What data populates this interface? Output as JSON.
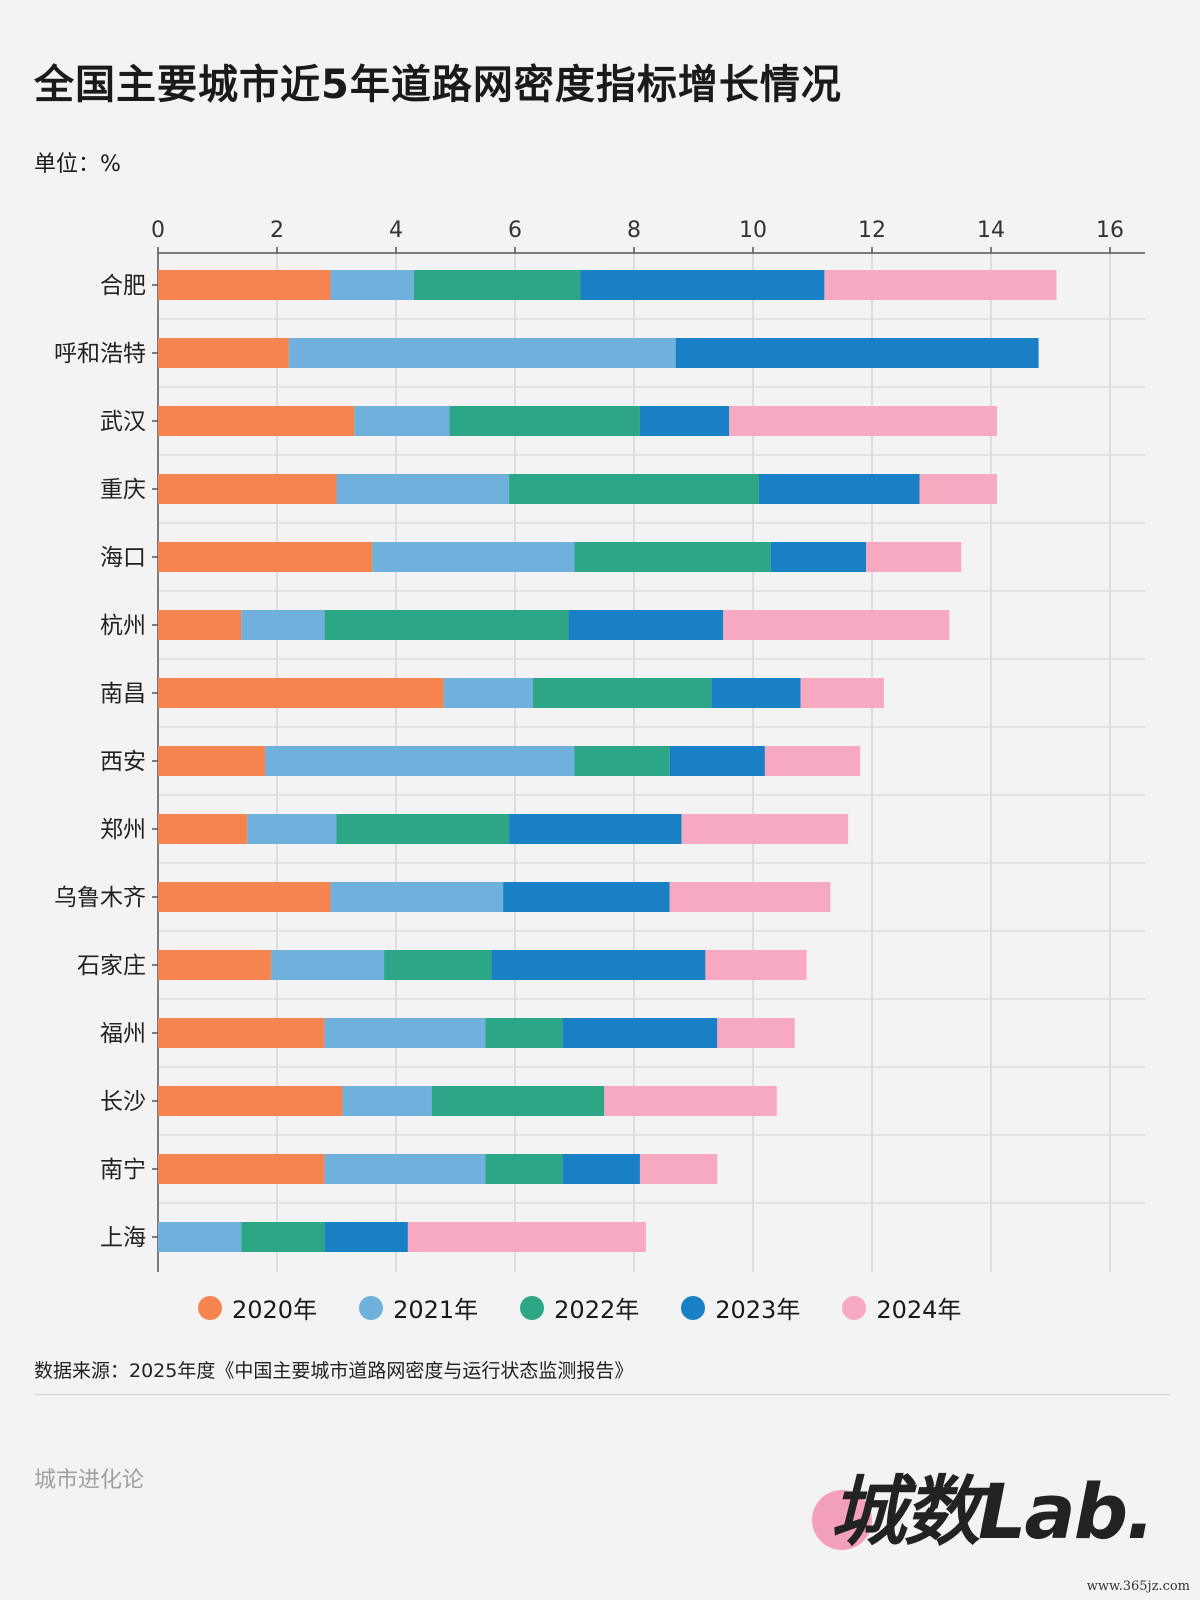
{
  "header": {
    "title": "全国主要城市近5年道路网密度指标增长情况",
    "unit": "单位：%"
  },
  "chart_data": {
    "type": "bar",
    "orientation": "horizontal",
    "stacked": true,
    "title": "全国主要城市近5年道路网密度指标增长情况",
    "xlabel": "",
    "ylabel": "",
    "xlim": [
      0,
      16.5
    ],
    "xticks": [
      0,
      2,
      4,
      6,
      8,
      10,
      12,
      14,
      16
    ],
    "grid": true,
    "legend_position": "bottom",
    "categories": [
      "合肥",
      "呼和浩特",
      "武汉",
      "重庆",
      "海口",
      "杭州",
      "南昌",
      "西安",
      "郑州",
      "乌鲁木齐",
      "石家庄",
      "福州",
      "长沙",
      "南宁",
      "上海"
    ],
    "series": [
      {
        "name": "2020年",
        "color": "#f5844e",
        "values": [
          2.9,
          2.2,
          3.3,
          3.0,
          3.6,
          1.4,
          4.8,
          1.8,
          1.5,
          2.9,
          1.9,
          2.8,
          3.1,
          2.8,
          0
        ]
      },
      {
        "name": "2021年",
        "color": "#6fb0dc",
        "values": [
          1.4,
          6.5,
          1.6,
          2.9,
          3.4,
          1.4,
          1.5,
          5.2,
          1.5,
          2.9,
          1.9,
          2.7,
          1.5,
          2.7,
          1.4
        ]
      },
      {
        "name": "2022年",
        "color": "#2da685",
        "values": [
          2.8,
          0,
          3.2,
          4.2,
          3.3,
          4.1,
          3.0,
          1.6,
          2.9,
          0,
          1.8,
          1.3,
          2.9,
          1.3,
          1.4
        ]
      },
      {
        "name": "2023年",
        "color": "#1a80c6",
        "values": [
          4.1,
          6.1,
          1.5,
          2.7,
          1.6,
          2.6,
          1.5,
          1.6,
          2.9,
          2.8,
          3.6,
          2.6,
          0,
          1.3,
          1.4
        ]
      },
      {
        "name": "2024年",
        "color": "#f7a9c1",
        "values": [
          3.9,
          0,
          4.5,
          1.3,
          1.6,
          3.8,
          1.4,
          1.6,
          2.8,
          2.7,
          1.7,
          1.3,
          2.9,
          1.3,
          4.0
        ]
      }
    ]
  },
  "footer": {
    "source": "数据来源：2025年度《中国主要城市道路网密度与运行状态监测报告》",
    "brand": "城市进化论",
    "logo": "城数Lab.",
    "site": "www.365jz.com"
  }
}
